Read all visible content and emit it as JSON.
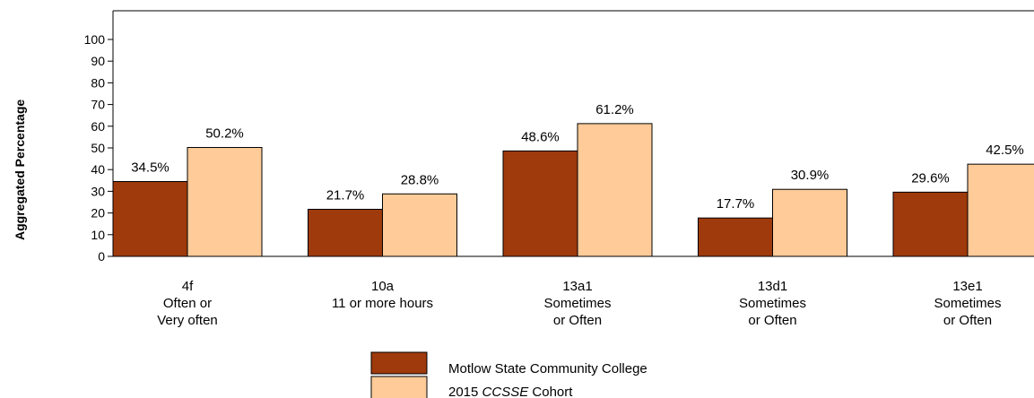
{
  "chart_data": {
    "type": "bar",
    "ylabel": "Aggregated Percentage",
    "ylim": [
      0,
      100
    ],
    "yticks": [
      "0",
      "10",
      "20",
      "30",
      "40",
      "50",
      "60",
      "70",
      "80",
      "90",
      "100"
    ],
    "categories": [
      [
        "4f",
        "Often or",
        "Very often"
      ],
      [
        "10a",
        "11 or more hours"
      ],
      [
        "13a1",
        "Sometimes",
        "or Often"
      ],
      [
        "13d1",
        "Sometimes",
        "or Often"
      ],
      [
        "13e1",
        "Sometimes",
        "or Often"
      ]
    ],
    "series": [
      {
        "name": "Motlow State Community College",
        "values": [
          34.5,
          21.7,
          48.6,
          17.7,
          29.6
        ],
        "labels": [
          "34.5%",
          "21.7%",
          "48.6%",
          "17.7%",
          "29.6%"
        ],
        "color": "#9E3A0C"
      },
      {
        "name": "2015 CCSSE Cohort",
        "values": [
          50.2,
          28.8,
          61.2,
          30.9,
          42.5
        ],
        "labels": [
          "50.2%",
          "28.8%",
          "61.2%",
          "30.9%",
          "42.5%"
        ],
        "color": "#FFCB99"
      }
    ],
    "legend": {
      "items": [
        {
          "text": "Motlow State Community College"
        },
        {
          "year": "2015",
          "abbr": "CCSSE",
          "rest": "Cohort"
        }
      ],
      "placement": "bottom-center"
    },
    "grid": false
  }
}
